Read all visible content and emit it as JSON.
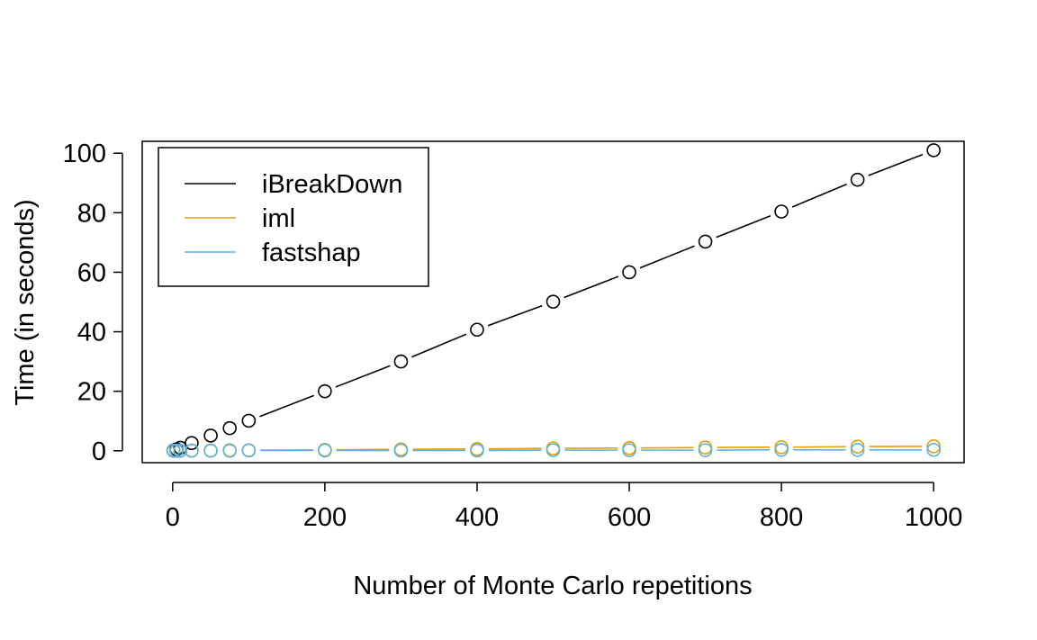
{
  "chart_data": {
    "type": "line",
    "title": "",
    "xlabel": "Number of Monte Carlo repetitions",
    "ylabel": "Time (in seconds)",
    "xlim": [
      -40,
      1040
    ],
    "ylim": [
      -4,
      104
    ],
    "x_ticks": [
      0,
      200,
      400,
      600,
      800,
      1000
    ],
    "y_ticks": [
      0,
      20,
      40,
      60,
      80,
      100
    ],
    "grid": false,
    "legend_position": "top-left",
    "x": [
      1,
      5,
      10,
      25,
      50,
      75,
      100,
      200,
      300,
      400,
      500,
      600,
      700,
      800,
      900,
      1000
    ],
    "series": [
      {
        "name": "iBreakDown",
        "color": "#000000",
        "values": [
          0.1,
          0.5,
          1.0,
          2.6,
          5.1,
          7.6,
          10.1,
          20.0,
          30.0,
          40.7,
          50.1,
          60.0,
          70.3,
          80.4,
          91.1,
          101.0
        ]
      },
      {
        "name": "iml",
        "color": "#E69F00",
        "values": [
          0.0,
          0.0,
          0.0,
          0.1,
          0.1,
          0.2,
          0.2,
          0.3,
          0.5,
          0.6,
          0.8,
          0.9,
          1.1,
          1.2,
          1.4,
          1.5
        ]
      },
      {
        "name": "fastshap",
        "color": "#56B4E9",
        "values": [
          0.0,
          0.0,
          0.0,
          0.0,
          0.0,
          0.0,
          0.1,
          0.1,
          0.1,
          0.1,
          0.2,
          0.2,
          0.2,
          0.3,
          0.3,
          0.3
        ]
      }
    ]
  }
}
